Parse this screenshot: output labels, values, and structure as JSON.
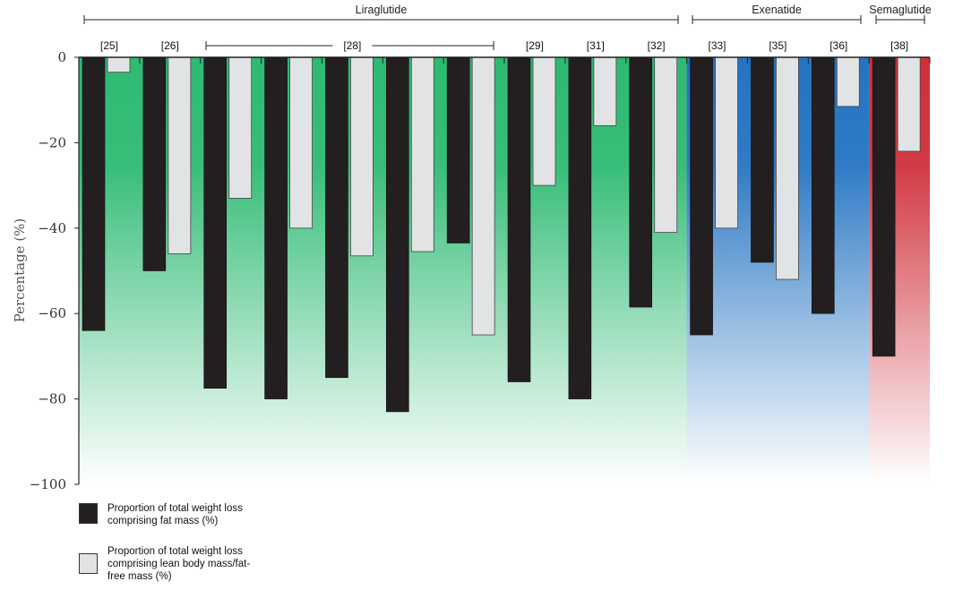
{
  "chart_data": {
    "type": "bar",
    "ylabel": "Percentage (%)",
    "ylim": [
      -100,
      0
    ],
    "yticks": [
      0,
      -20,
      -40,
      -60,
      -80,
      -100
    ],
    "yticklabels": [
      "0",
      "−20",
      "−40",
      "−60",
      "−80",
      "−100"
    ],
    "groups": [
      {
        "name": "Liraglutide",
        "color": "#2dba72"
      },
      {
        "name": "Exenatide",
        "color": "#2474c2"
      },
      {
        "name": "Semaglutide",
        "color": "#cf2f3a"
      }
    ],
    "series": [
      {
        "name": "Proportion of total weight loss comprising fat mass (%)",
        "color": "#231f20"
      },
      {
        "name": "Proportion of total weight loss comprising lean body mass/fat-free mass (%)",
        "color": "#e2e3e4"
      }
    ],
    "pairs": [
      {
        "ref": "[25]",
        "group": "Liraglutide",
        "fat": -64,
        "lean": -3.5
      },
      {
        "ref": "[26]",
        "group": "Liraglutide",
        "fat": -50,
        "lean": -46
      },
      {
        "ref": "[28]",
        "group": "Liraglutide",
        "fat": -77.5,
        "lean": -33
      },
      {
        "ref": "[28]",
        "group": "Liraglutide",
        "fat": -80,
        "lean": -40
      },
      {
        "ref": "[28]",
        "group": "Liraglutide",
        "fat": -75,
        "lean": -46.5
      },
      {
        "ref": "[28]",
        "group": "Liraglutide",
        "fat": -83,
        "lean": -45.5
      },
      {
        "ref": "[28]",
        "group": "Liraglutide",
        "fat": -43.5,
        "lean": -65
      },
      {
        "ref": "[29]",
        "group": "Liraglutide",
        "fat": -76,
        "lean": -30
      },
      {
        "ref": "[31]",
        "group": "Liraglutide",
        "fat": -80,
        "lean": -16
      },
      {
        "ref": "[32]",
        "group": "Liraglutide",
        "fat": -58.5,
        "lean": -41
      },
      {
        "ref": "[33]",
        "group": "Exenatide",
        "fat": -65,
        "lean": -40
      },
      {
        "ref": "[35]",
        "group": "Exenatide",
        "fat": -48,
        "lean": -52
      },
      {
        "ref": "[36]",
        "group": "Exenatide",
        "fat": -60,
        "lean": -11.5
      },
      {
        "ref": "[38]",
        "group": "Semaglutide",
        "fat": -70,
        "lean": -22
      }
    ],
    "ref_labels": [
      {
        "text": "[25]",
        "pairs": [
          0,
          0
        ]
      },
      {
        "text": "[26]",
        "pairs": [
          1,
          1
        ]
      },
      {
        "text": "[28]",
        "pairs": [
          2,
          6
        ]
      },
      {
        "text": "[29]",
        "pairs": [
          7,
          7
        ]
      },
      {
        "text": "[31]",
        "pairs": [
          8,
          8
        ]
      },
      {
        "text": "[32]",
        "pairs": [
          9,
          9
        ]
      },
      {
        "text": "[33]",
        "pairs": [
          10,
          10
        ]
      },
      {
        "text": "[35]",
        "pairs": [
          11,
          11
        ]
      },
      {
        "text": "[36]",
        "pairs": [
          12,
          12
        ]
      },
      {
        "text": "[38]",
        "pairs": [
          13,
          13
        ]
      }
    ],
    "legend": [
      {
        "label": "Proportion of total weight loss comprising fat mass (%)",
        "color": "#231f20"
      },
      {
        "label": "Proportion of total weight loss comprising lean body mass/fat-free mass (%)",
        "color": "#e2e3e4"
      }
    ]
  }
}
